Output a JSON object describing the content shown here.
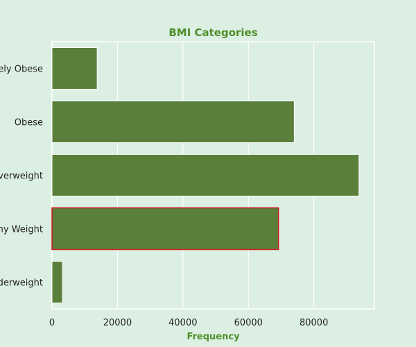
{
  "colors": {
    "background": "#dcefe3",
    "plot_background": "#dcefe3",
    "bar_fill": "#5a7f3b",
    "bar_edge": "#ffffff",
    "highlight_edge": "#cc1a1a",
    "title": "#4e8f2a",
    "axis_label": "#4e8f2a",
    "grid": "#ffffff",
    "tick_text": "#222222"
  },
  "chart_data": {
    "type": "bar",
    "orientation": "horizontal",
    "title": "BMI Categories",
    "xlabel": "Frequency",
    "ylabel": "",
    "categories": [
      "Severely Obese",
      "Obese",
      "Overweight",
      "Healthy Weight",
      "Underweight"
    ],
    "values": [
      13800,
      74000,
      93800,
      69200,
      3200
    ],
    "highlight_category": "Healthy Weight",
    "xlim": [
      0,
      98500
    ],
    "xticks": [
      0,
      20000,
      40000,
      60000,
      80000
    ],
    "xtick_labels": [
      "0",
      "20000",
      "40000",
      "60000",
      "80000"
    ],
    "grid": true,
    "legend": "none"
  }
}
